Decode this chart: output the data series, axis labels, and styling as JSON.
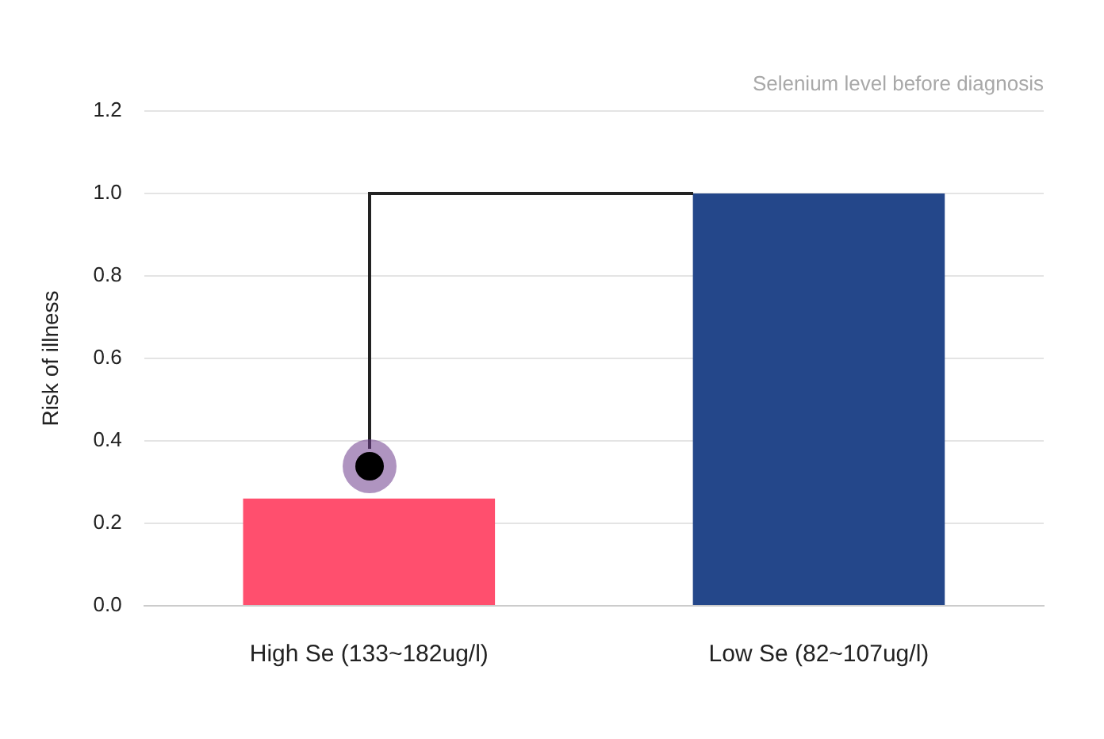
{
  "chart_data": {
    "type": "bar",
    "subtitle": "Selenium level before diagnosis",
    "ylabel": "Risk of illness",
    "categories": [
      "High Se (133~182ug/l)",
      "Low Se (82~107ug/l)"
    ],
    "values": [
      0.26,
      1.0
    ],
    "colors": [
      "#ff4f6e",
      "#24478a"
    ],
    "ylim": [
      0,
      1.2
    ],
    "yticks": [
      {
        "value": 0,
        "label": "0.0"
      },
      {
        "value": 0.2,
        "label": "0.2"
      },
      {
        "value": 0.4,
        "label": "0.4"
      },
      {
        "value": 0.6,
        "label": "0.6"
      },
      {
        "value": 0.8,
        "label": "0.8"
      },
      {
        "value": 1,
        "label": "1.0"
      },
      {
        "value": 1.2,
        "label": "1.2"
      }
    ],
    "grid": "y",
    "legend": false
  }
}
